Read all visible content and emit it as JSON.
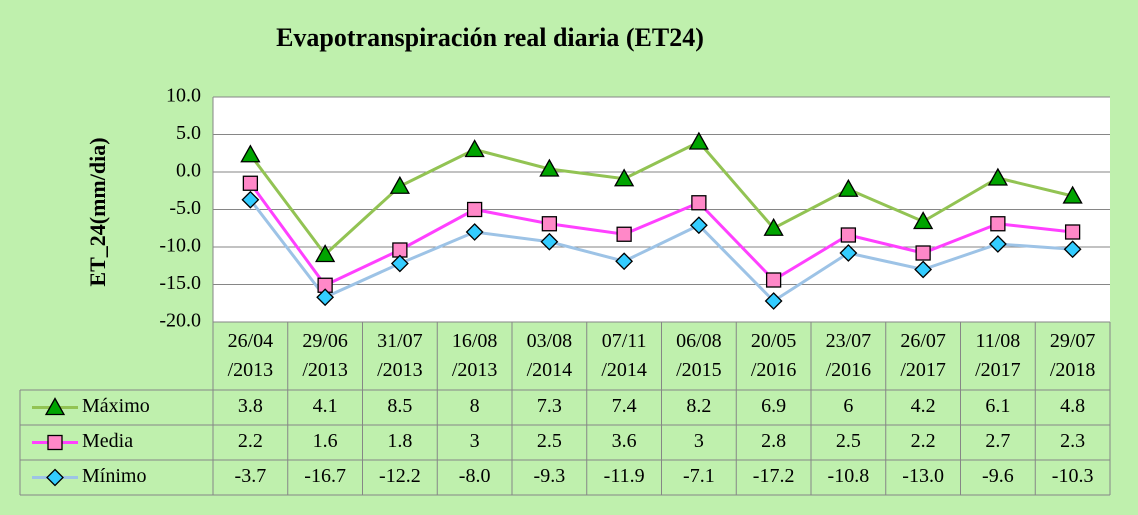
{
  "chart_data": {
    "type": "line",
    "title": "Evapotranspiración real diaria (ET24)",
    "ylabel": "ET_24(mm/dia)",
    "categories": [
      "26/04/2013",
      "29/06/2013",
      "31/07/2013",
      "16/08/2013",
      "03/08/2014",
      "07/11/2014",
      "06/08/2015",
      "20/05/2016",
      "23/07/2016",
      "26/07/2017",
      "11/08/2017",
      "29/07/2018"
    ],
    "series": [
      {
        "name": "Máximo",
        "color": "#92c353",
        "marker": "triangle",
        "marker_color": "#00a400",
        "values": [
          2.3,
          -11.0,
          -1.9,
          3.0,
          0.4,
          -0.9,
          4.0,
          -7.5,
          -2.3,
          -6.6,
          -0.8,
          -3.2
        ],
        "table": [
          "3.8",
          "4.1",
          "8.5",
          "8",
          "7.3",
          "7.4",
          "8.2",
          "6.9",
          "6",
          "4.2",
          "6.1",
          "4.8"
        ]
      },
      {
        "name": "Media",
        "color": "#ff40ff",
        "marker": "square",
        "marker_color": "#ff88c8",
        "values": [
          -1.5,
          -15.1,
          -10.4,
          -5.0,
          -6.9,
          -8.3,
          -4.1,
          -14.4,
          -8.4,
          -10.8,
          -6.9,
          -8.0
        ],
        "table": [
          "2.2",
          "1.6",
          "1.8",
          "3",
          "2.5",
          "3.6",
          "3",
          "2.8",
          "2.5",
          "2.2",
          "2.7",
          "2.3"
        ]
      },
      {
        "name": "Mínimo",
        "color": "#9dc3e6",
        "marker": "diamond",
        "marker_color": "#33ccff",
        "values": [
          -3.7,
          -16.7,
          -12.2,
          -8.0,
          -9.3,
          -11.9,
          -7.1,
          -17.2,
          -10.8,
          -13.0,
          -9.6,
          -10.3
        ],
        "table": [
          "-3.7",
          "-16.7",
          "-12.2",
          "-8.0",
          "-9.3",
          "-11.9",
          "-7.1",
          "-17.2",
          "-10.8",
          "-13.0",
          "-9.6",
          "-10.3"
        ]
      }
    ],
    "ylim": [
      -20,
      10
    ],
    "yticks": [
      {
        "value": -20,
        "label": "-20.0"
      },
      {
        "value": -15,
        "label": "-15.0"
      },
      {
        "value": -10,
        "label": "-10.0"
      },
      {
        "value": -5,
        "label": "-5.0"
      },
      {
        "value": 0,
        "label": "0.0"
      },
      {
        "value": 5,
        "label": "5.0"
      },
      {
        "value": 10,
        "label": "10.0"
      }
    ],
    "grid": true
  }
}
